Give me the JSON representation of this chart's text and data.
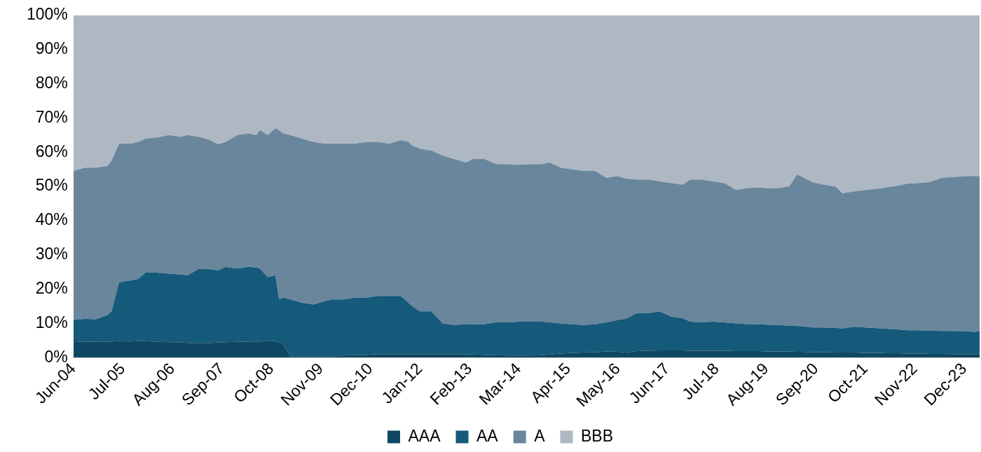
{
  "chart_data": {
    "type": "area",
    "stacked": true,
    "legend": "bottom",
    "grid": false,
    "marker": "none",
    "x": [
      "2004-06",
      "2004-09",
      "2004-12",
      "2005-03",
      "2005-04",
      "2005-06",
      "2005-09",
      "2005-11",
      "2006-01",
      "2006-04",
      "2006-07",
      "2006-10",
      "2006-12",
      "2007-03",
      "2007-06",
      "2007-08",
      "2007-10",
      "2008-01",
      "2008-04",
      "2008-06",
      "2008-07",
      "2008-09",
      "2008-11",
      "2008-12",
      "2009-01",
      "2009-03",
      "2009-06",
      "2009-09",
      "2009-12",
      "2010-02",
      "2010-05",
      "2010-08",
      "2010-11",
      "2011-02",
      "2011-05",
      "2011-08",
      "2011-10",
      "2011-11",
      "2012-01",
      "2012-04",
      "2012-07",
      "2012-10",
      "2013-01",
      "2013-03",
      "2013-06",
      "2013-09",
      "2013-12",
      "2014-03",
      "2014-06",
      "2014-09",
      "2014-11",
      "2015-02",
      "2015-05",
      "2015-08",
      "2015-11",
      "2016-02",
      "2016-05",
      "2016-07",
      "2016-10",
      "2017-01",
      "2017-04",
      "2017-07",
      "2017-10",
      "2017-12",
      "2018-03",
      "2018-06",
      "2018-09",
      "2018-12",
      "2019-03",
      "2019-06",
      "2019-08",
      "2019-11",
      "2020-02",
      "2020-04",
      "2020-05",
      "2020-08",
      "2020-11",
      "2021-02",
      "2021-04",
      "2021-07",
      "2021-10",
      "2022-01",
      "2022-04",
      "2022-07",
      "2022-09",
      "2022-12",
      "2023-03",
      "2023-06",
      "2023-09",
      "2023-12",
      "2024-03",
      "2024-04"
    ],
    "series": [
      {
        "name": "AAA",
        "color": "#0f4762",
        "values": [
          4.5,
          4.7,
          4.6,
          4.6,
          4.7,
          4.8,
          4.7,
          4.8,
          4.8,
          4.6,
          4.5,
          4.5,
          4.3,
          4.3,
          4.3,
          4.4,
          4.5,
          4.6,
          4.7,
          4.7,
          4.7,
          4.8,
          4.8,
          4.5,
          4,
          0.3,
          0.3,
          0.3,
          0.3,
          0.3,
          0.6,
          0.8,
          0.8,
          1,
          1,
          1,
          1,
          1,
          1,
          1,
          1,
          1,
          1,
          0.9,
          0.8,
          0.7,
          0.6,
          0.6,
          0.6,
          0.7,
          0.9,
          1.2,
          1.4,
          1.5,
          1.6,
          1.8,
          1.7,
          1.5,
          1.9,
          2,
          2.1,
          2.1,
          2.1,
          2,
          2,
          2,
          2,
          1.9,
          1.9,
          1.9,
          1.8,
          1.8,
          1.8,
          1.7,
          1.7,
          1.6,
          1.6,
          1.5,
          1.5,
          1.5,
          1.4,
          1.4,
          1.3,
          1.3,
          1.2,
          1.2,
          1.1,
          1.1,
          1,
          1,
          1,
          1
        ]
      },
      {
        "name": "AA",
        "color": "#155a7a",
        "values": [
          6.5,
          6.6,
          6.6,
          7.9,
          8.8,
          17.2,
          17.8,
          18.2,
          20.2,
          20.2,
          20,
          19.8,
          19.7,
          21.7,
          21.5,
          21.1,
          22,
          21.4,
          21.8,
          21.6,
          21.3,
          18.7,
          19.2,
          12.5,
          13.5,
          16.7,
          15.7,
          15.2,
          16.2,
          16.7,
          16.4,
          16.7,
          16.7,
          17,
          17,
          17,
          15,
          14,
          12.5,
          12.5,
          9,
          8.5,
          8.8,
          8.8,
          9,
          9.6,
          9.7,
          9.9,
          9.9,
          9.8,
          9.4,
          8.8,
          8.3,
          8,
          8.1,
          8.5,
          9.3,
          9.8,
          11.1,
          11,
          11.4,
          9.9,
          9.4,
          8.5,
          8.3,
          8.5,
          8.3,
          8.1,
          7.9,
          7.8,
          7.8,
          7.7,
          7.5,
          7.5,
          7.5,
          7.2,
          7.2,
          7.2,
          7,
          7.5,
          7.4,
          7.2,
          7.1,
          6.9,
          6.8,
          6.8,
          6.8,
          6.7,
          6.8,
          6.7,
          6.5,
          6.8
        ]
      },
      {
        "name": "A",
        "color": "#6a869c",
        "values": [
          43.5,
          44.2,
          44.3,
          43.5,
          44,
          40.5,
          40,
          40,
          39,
          39.5,
          40.5,
          40.2,
          41,
          38.5,
          37.7,
          36.8,
          36.5,
          39,
          39,
          38.7,
          40.5,
          41.5,
          43,
          49.5,
          48,
          48,
          48,
          47.5,
          46,
          45.5,
          45.5,
          45,
          45.5,
          45,
          44.5,
          45.5,
          47,
          47,
          47.5,
          47,
          49,
          48.5,
          47.2,
          48.3,
          48.2,
          46.2,
          46.2,
          45.8,
          46,
          46,
          46.7,
          45.5,
          45.3,
          45,
          44.8,
          42.2,
          42,
          41,
          39,
          39,
          38,
          39,
          39,
          41.5,
          41.7,
          41,
          40.7,
          39,
          39.7,
          40,
          39.9,
          40,
          40.7,
          44.3,
          43.8,
          42.5,
          41.7,
          41.3,
          39.5,
          39.5,
          40.2,
          40.7,
          41.4,
          42.1,
          42.8,
          43,
          43.4,
          44.7,
          44.9,
          45.3,
          45.5,
          45.2
        ]
      },
      {
        "name": "BBB",
        "color": "#aeb8c3",
        "values": [
          45.5,
          44.5,
          44.5,
          44,
          42.5,
          37.5,
          37.5,
          37,
          36,
          35.7,
          35,
          35.5,
          35,
          35.5,
          36.5,
          37.7,
          37,
          35,
          34.5,
          35,
          33.5,
          35,
          33,
          33.5,
          34.5,
          35,
          36,
          37,
          37.5,
          37.5,
          37.5,
          37.5,
          37,
          37,
          37.5,
          36.5,
          37,
          38,
          39,
          39.5,
          41,
          42,
          43,
          42,
          42,
          43.5,
          43.5,
          43.7,
          43.5,
          43.5,
          43,
          44.5,
          45,
          45.5,
          45.5,
          47.5,
          47,
          47.7,
          48,
          48,
          48.5,
          49,
          49.5,
          48,
          48,
          48.5,
          49,
          51,
          50.5,
          50.3,
          50.5,
          50.5,
          50,
          46.5,
          47,
          48.7,
          49.5,
          50,
          52,
          51.5,
          51,
          50.7,
          50.2,
          49.7,
          49.2,
          49,
          48.7,
          47.5,
          47.3,
          47,
          47,
          47
        ]
      }
    ],
    "xlim": [
      "2004-06",
      "2024-04"
    ],
    "xticks": [
      {
        "value": "2004-06",
        "label": "Jun-04"
      },
      {
        "value": "2005-07",
        "label": "Jul-05"
      },
      {
        "value": "2006-08",
        "label": "Aug-06"
      },
      {
        "value": "2007-09",
        "label": "Sep-07"
      },
      {
        "value": "2008-10",
        "label": "Oct-08"
      },
      {
        "value": "2009-11",
        "label": "Nov-09"
      },
      {
        "value": "2010-12",
        "label": "Dec-10"
      },
      {
        "value": "2012-01",
        "label": "Jan-12"
      },
      {
        "value": "2013-02",
        "label": "Feb-13"
      },
      {
        "value": "2014-03",
        "label": "Mar-14"
      },
      {
        "value": "2015-04",
        "label": "Apr-15"
      },
      {
        "value": "2016-05",
        "label": "May-16"
      },
      {
        "value": "2017-06",
        "label": "Jun-17"
      },
      {
        "value": "2018-07",
        "label": "Jul-18"
      },
      {
        "value": "2019-08",
        "label": "Aug-19"
      },
      {
        "value": "2020-09",
        "label": "Sep-20"
      },
      {
        "value": "2021-10",
        "label": "Oct-21"
      },
      {
        "value": "2022-11",
        "label": "Nov-22"
      },
      {
        "value": "2023-12",
        "label": "Dec-23"
      }
    ],
    "ylim": [
      0,
      100
    ],
    "yticks": [
      {
        "value": 0,
        "label": "0%"
      },
      {
        "value": 10,
        "label": "10%"
      },
      {
        "value": 20,
        "label": "20%"
      },
      {
        "value": 30,
        "label": "30%"
      },
      {
        "value": 40,
        "label": "40%"
      },
      {
        "value": 50,
        "label": "50%"
      },
      {
        "value": 60,
        "label": "60%"
      },
      {
        "value": 70,
        "label": "70%"
      },
      {
        "value": 80,
        "label": "80%"
      },
      {
        "value": 90,
        "label": "90%"
      },
      {
        "value": 100,
        "label": "100%"
      }
    ]
  }
}
